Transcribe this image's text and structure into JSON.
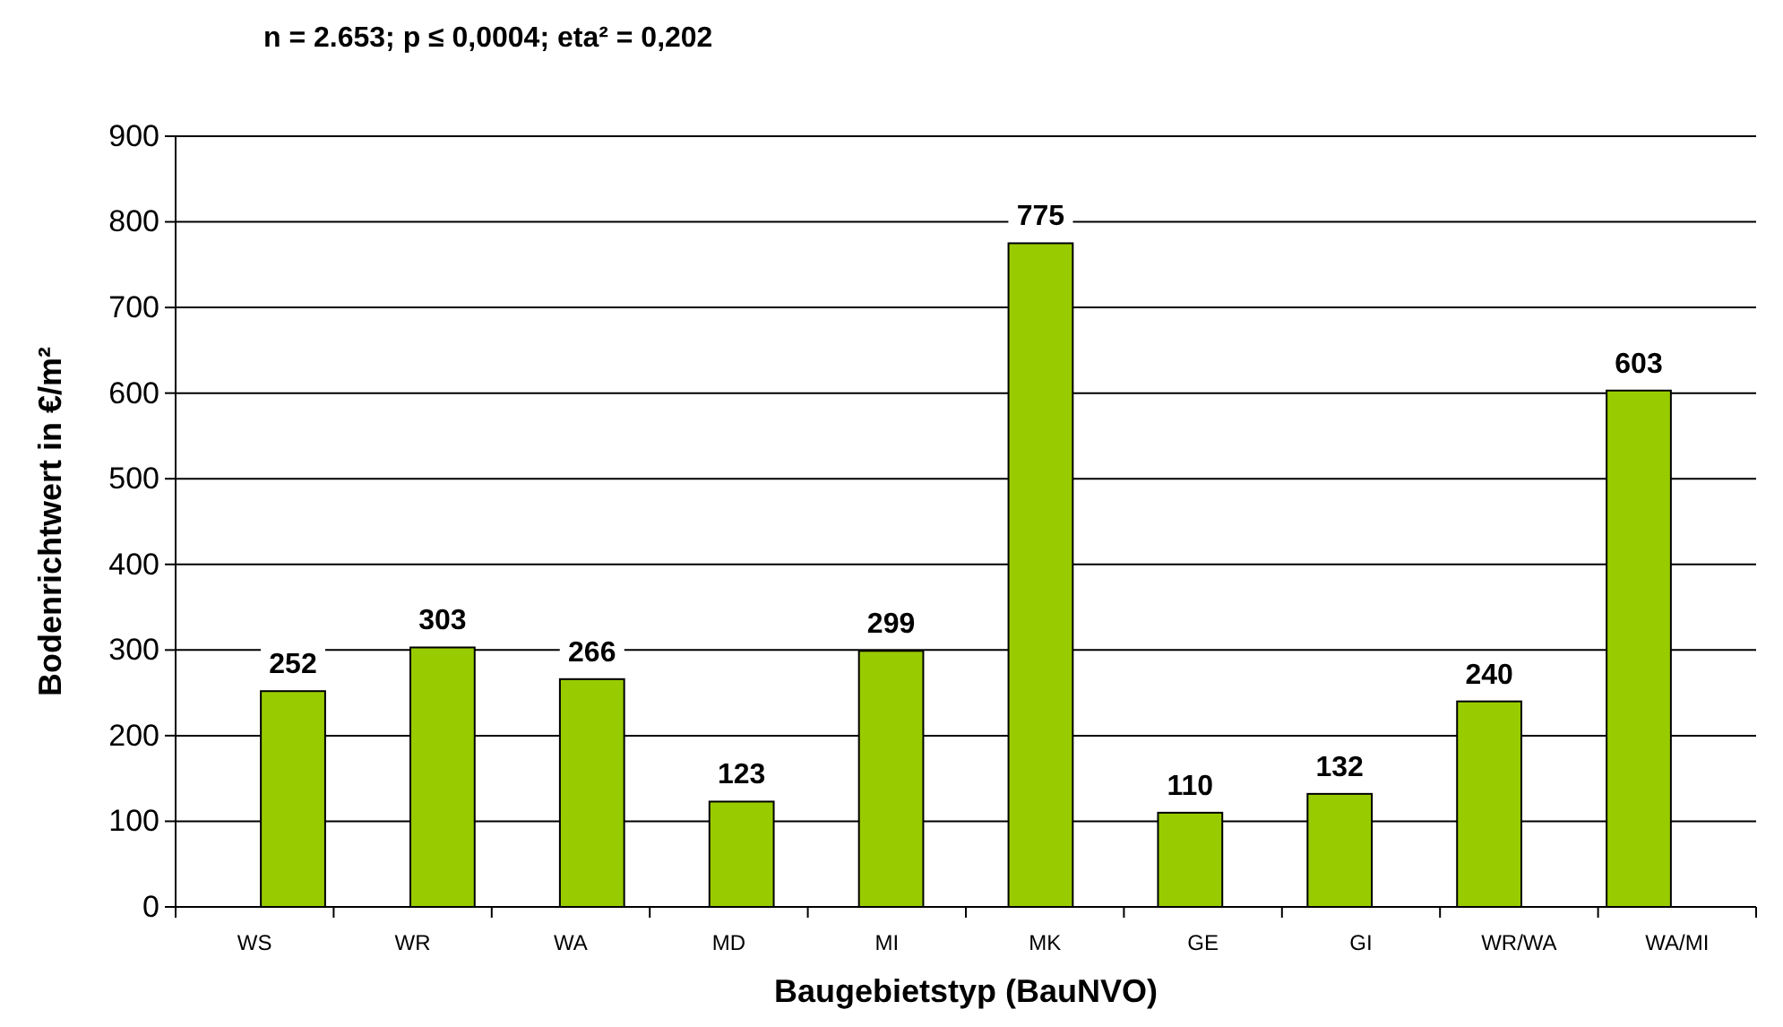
{
  "chart_data": {
    "type": "bar",
    "title": "n = 2.653; p ≤ 0,0004; eta² = 0,202",
    "xlabel": "Baugebietstyp (BauNVO)",
    "ylabel": "Bodenrichtwert in €/m²",
    "categories": [
      "WS",
      "WR",
      "WA",
      "MD",
      "MI",
      "MK",
      "GE",
      "GI",
      "WR/WA",
      "WA/MI"
    ],
    "values": [
      252,
      303,
      266,
      123,
      299,
      775,
      110,
      132,
      240,
      603
    ],
    "color": "#99cc00",
    "ylim": [
      0,
      900
    ],
    "yticks": [
      0,
      100,
      200,
      300,
      400,
      500,
      600,
      700,
      800,
      900
    ],
    "grid": "y",
    "data_labels": true
  }
}
